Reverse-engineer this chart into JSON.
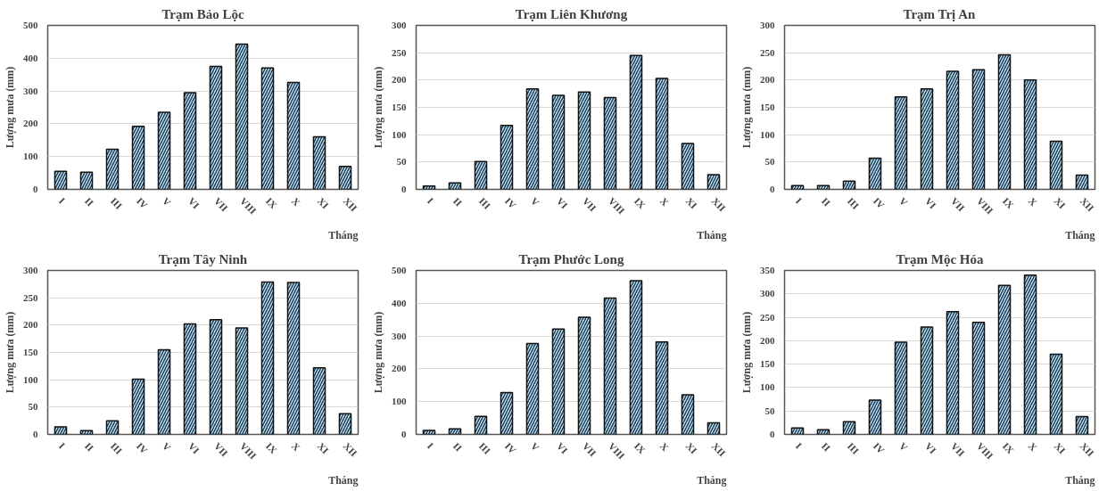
{
  "chart_data": [
    {
      "type": "bar",
      "title": "Trạm Bảo Lộc",
      "xlabel": "Tháng",
      "ylabel": "Lượng mưa (mm)",
      "categories": [
        "I",
        "II",
        "III",
        "IV",
        "V",
        "VI",
        "VII",
        "VIII",
        "IX",
        "X",
        "XI",
        "XII"
      ],
      "values": [
        55,
        52,
        122,
        192,
        235,
        295,
        375,
        443,
        370,
        326,
        160,
        70
      ],
      "color": "#c9ecf8",
      "ylim": [
        0,
        500
      ],
      "yticks": [
        0,
        100,
        200,
        300,
        400,
        500
      ],
      "grid": "y"
    },
    {
      "type": "bar",
      "title": "Trạm Liên Khương",
      "xlabel": "Tháng",
      "ylabel": "Lượng mưa (mm)",
      "categories": [
        "I",
        "II",
        "III",
        "IV",
        "V",
        "VI",
        "VII",
        "VIII",
        "IX",
        "X",
        "XI",
        "XII"
      ],
      "values": [
        6,
        12,
        51,
        117,
        184,
        172,
        178,
        168,
        245,
        203,
        84,
        27
      ],
      "color": "#c9ecf8",
      "ylim": [
        0,
        300
      ],
      "yticks": [
        0,
        50,
        100,
        150,
        200,
        250,
        300
      ],
      "grid": "y"
    },
    {
      "type": "bar",
      "title": "Trạm Trị An",
      "xlabel": "Tháng",
      "ylabel": "Lượng mưa (mm)",
      "categories": [
        "I",
        "II",
        "III",
        "IV",
        "V",
        "VI",
        "VII",
        "VIII",
        "IX",
        "X",
        "XI",
        "XII"
      ],
      "values": [
        7,
        7,
        15,
        57,
        169,
        184,
        216,
        219,
        246,
        200,
        88,
        26
      ],
      "color": "#c9ecf8",
      "ylim": [
        0,
        300
      ],
      "yticks": [
        0,
        50,
        100,
        150,
        200,
        250,
        300
      ],
      "grid": "y"
    },
    {
      "type": "bar",
      "title": "Trạm Tây Ninh",
      "xlabel": "Tháng",
      "ylabel": "Lượng mưa (mm)",
      "categories": [
        "I",
        "II",
        "III",
        "IV",
        "V",
        "VI",
        "VII",
        "VIII",
        "IX",
        "X",
        "XI",
        "XII"
      ],
      "values": [
        14,
        7,
        25,
        101,
        155,
        202,
        210,
        195,
        279,
        278,
        122,
        38
      ],
      "color": "#c9ecf8",
      "ylim": [
        0,
        300
      ],
      "yticks": [
        0,
        50,
        100,
        150,
        200,
        250,
        300
      ],
      "grid": "y"
    },
    {
      "type": "bar",
      "title": "Trạm Phước Long",
      "xlabel": "Tháng",
      "ylabel": "Lượng mưa (mm)",
      "categories": [
        "I",
        "II",
        "III",
        "IV",
        "V",
        "VI",
        "VII",
        "VIII",
        "IX",
        "X",
        "XI",
        "XII"
      ],
      "values": [
        12,
        17,
        55,
        128,
        277,
        321,
        357,
        416,
        469,
        282,
        121,
        35
      ],
      "color": "#c9ecf8",
      "ylim": [
        0,
        500
      ],
      "yticks": [
        0,
        100,
        200,
        300,
        400,
        500
      ],
      "grid": "y"
    },
    {
      "type": "bar",
      "title": "Trạm Mộc Hóa",
      "xlabel": "Tháng",
      "ylabel": "Lượng mưa (mm)",
      "categories": [
        "I",
        "II",
        "III",
        "IV",
        "V",
        "VI",
        "VII",
        "VIII",
        "IX",
        "X",
        "XI",
        "XII"
      ],
      "values": [
        14,
        10,
        27,
        73,
        197,
        229,
        262,
        239,
        318,
        340,
        171,
        38
      ],
      "color": "#c9ecf8",
      "ylim": [
        0,
        350
      ],
      "yticks": [
        0,
        50,
        100,
        150,
        200,
        250,
        300,
        350
      ],
      "grid": "y"
    }
  ]
}
